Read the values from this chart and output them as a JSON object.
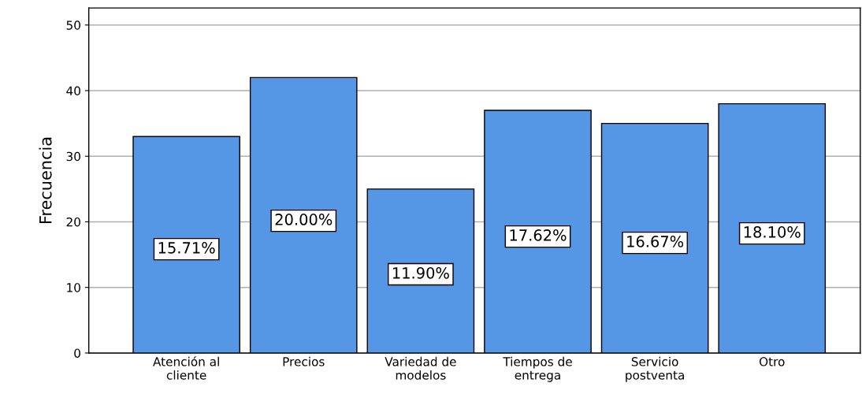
{
  "chart_data": {
    "type": "bar",
    "ylabel": "Frecuencia",
    "categories": [
      "Atención al\ncliente",
      "Precios",
      "Variedad de\nmodelos",
      "Tiempos de\nentrega",
      "Servicio\npostventa",
      "Otro"
    ],
    "values": [
      33,
      42,
      25,
      37,
      35,
      38
    ],
    "annotations": [
      "15.71%",
      "20.00%",
      "11.90%",
      "17.62%",
      "16.67%",
      "18.10%"
    ],
    "color": "#5596e5",
    "ylim": [
      0,
      52.6
    ],
    "yticks": [
      0,
      10,
      20,
      30,
      40,
      50
    ],
    "grid": "y",
    "legend": false
  }
}
